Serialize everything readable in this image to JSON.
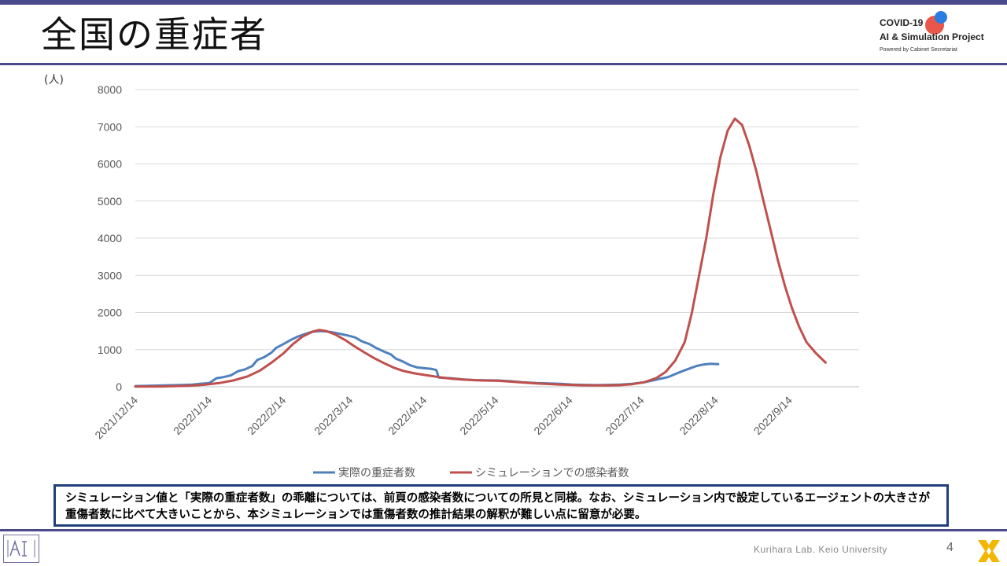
{
  "header": {
    "title": "全国の重症者",
    "logo": {
      "line1": "COVID-19",
      "line2": "AI & Simulation Project",
      "line3": "Powered by Cabinet Secretariat"
    }
  },
  "chart_data": {
    "type": "line",
    "ylabel": "(人)",
    "xlabel": "",
    "ylim": [
      0,
      8000
    ],
    "yticks": [
      0,
      1000,
      2000,
      3000,
      4000,
      5000,
      6000,
      7000,
      8000
    ],
    "xlim": [
      "2021-12-14",
      "2022-10-13"
    ],
    "xtick_dates": [
      "2021-12-14",
      "2022-01-14",
      "2022-02-14",
      "2022-03-14",
      "2022-04-14",
      "2022-05-14",
      "2022-06-14",
      "2022-07-14",
      "2022-08-14",
      "2022-09-14"
    ],
    "xtick_labels": [
      "2021/12/14",
      "2022/1/14",
      "2022/2/14",
      "2022/3/14",
      "2022/4/14",
      "2022/5/14",
      "2022/6/14",
      "2022/7/14",
      "2022/8/14",
      "2022/9/14"
    ],
    "grid": true,
    "legend_position": "bottom",
    "series": [
      {
        "name": "実際の重症者数",
        "color": "#4f81bd",
        "points": [
          [
            "2021-12-14",
            20
          ],
          [
            "2021-12-20",
            25
          ],
          [
            "2021-12-26",
            35
          ],
          [
            "2022-01-01",
            45
          ],
          [
            "2022-01-07",
            60
          ],
          [
            "2022-01-10",
            80
          ],
          [
            "2022-01-14",
            100
          ],
          [
            "2022-01-17",
            230
          ],
          [
            "2022-01-20",
            260
          ],
          [
            "2022-01-23",
            310
          ],
          [
            "2022-01-26",
            420
          ],
          [
            "2022-01-29",
            470
          ],
          [
            "2022-02-01",
            560
          ],
          [
            "2022-02-03",
            720
          ],
          [
            "2022-02-06",
            800
          ],
          [
            "2022-02-09",
            920
          ],
          [
            "2022-02-11",
            1050
          ],
          [
            "2022-02-14",
            1150
          ],
          [
            "2022-02-17",
            1260
          ],
          [
            "2022-02-20",
            1350
          ],
          [
            "2022-02-23",
            1420
          ],
          [
            "2022-02-26",
            1480
          ],
          [
            "2022-03-01",
            1500
          ],
          [
            "2022-03-04",
            1490
          ],
          [
            "2022-03-07",
            1460
          ],
          [
            "2022-03-10",
            1420
          ],
          [
            "2022-03-13",
            1380
          ],
          [
            "2022-03-16",
            1330
          ],
          [
            "2022-03-19",
            1220
          ],
          [
            "2022-03-22",
            1150
          ],
          [
            "2022-03-25",
            1040
          ],
          [
            "2022-03-28",
            950
          ],
          [
            "2022-03-31",
            870
          ],
          [
            "2022-04-02",
            760
          ],
          [
            "2022-04-05",
            680
          ],
          [
            "2022-04-08",
            580
          ],
          [
            "2022-04-11",
            520
          ],
          [
            "2022-04-14",
            500
          ],
          [
            "2022-04-17",
            480
          ],
          [
            "2022-04-19",
            450
          ],
          [
            "2022-04-20",
            250
          ],
          [
            "2022-04-25",
            230
          ],
          [
            "2022-04-30",
            200
          ],
          [
            "2022-05-05",
            180
          ],
          [
            "2022-05-10",
            175
          ],
          [
            "2022-05-15",
            170
          ],
          [
            "2022-05-20",
            150
          ],
          [
            "2022-05-25",
            120
          ],
          [
            "2022-05-31",
            100
          ],
          [
            "2022-06-05",
            90
          ],
          [
            "2022-06-10",
            80
          ],
          [
            "2022-06-15",
            60
          ],
          [
            "2022-06-20",
            50
          ],
          [
            "2022-06-25",
            45
          ],
          [
            "2022-06-30",
            50
          ],
          [
            "2022-07-05",
            60
          ],
          [
            "2022-07-10",
            80
          ],
          [
            "2022-07-15",
            120
          ],
          [
            "2022-07-20",
            190
          ],
          [
            "2022-07-25",
            260
          ],
          [
            "2022-07-28",
            340
          ],
          [
            "2022-07-31",
            420
          ],
          [
            "2022-08-03",
            490
          ],
          [
            "2022-08-06",
            560
          ],
          [
            "2022-08-09",
            600
          ],
          [
            "2022-08-12",
            620
          ],
          [
            "2022-08-15",
            610
          ]
        ]
      },
      {
        "name": "シミュレーションでの感染者数",
        "color": "#c0504d",
        "points": [
          [
            "2021-12-14",
            5
          ],
          [
            "2021-12-25",
            8
          ],
          [
            "2022-01-05",
            25
          ],
          [
            "2022-01-12",
            55
          ],
          [
            "2022-01-18",
            100
          ],
          [
            "2022-01-24",
            170
          ],
          [
            "2022-01-30",
            280
          ],
          [
            "2022-02-04",
            430
          ],
          [
            "2022-02-09",
            650
          ],
          [
            "2022-02-14",
            900
          ],
          [
            "2022-02-18",
            1150
          ],
          [
            "2022-02-22",
            1350
          ],
          [
            "2022-02-26",
            1480
          ],
          [
            "2022-03-01",
            1530
          ],
          [
            "2022-03-04",
            1500
          ],
          [
            "2022-03-08",
            1400
          ],
          [
            "2022-03-12",
            1250
          ],
          [
            "2022-03-16",
            1080
          ],
          [
            "2022-03-20",
            920
          ],
          [
            "2022-03-24",
            770
          ],
          [
            "2022-03-28",
            640
          ],
          [
            "2022-04-01",
            520
          ],
          [
            "2022-04-05",
            430
          ],
          [
            "2022-04-10",
            360
          ],
          [
            "2022-04-15",
            310
          ],
          [
            "2022-04-20",
            260
          ],
          [
            "2022-04-25",
            220
          ],
          [
            "2022-05-01",
            190
          ],
          [
            "2022-05-08",
            170
          ],
          [
            "2022-05-15",
            160
          ],
          [
            "2022-05-22",
            130
          ],
          [
            "2022-05-31",
            90
          ],
          [
            "2022-06-10",
            60
          ],
          [
            "2022-06-20",
            40
          ],
          [
            "2022-06-30",
            35
          ],
          [
            "2022-07-05",
            45
          ],
          [
            "2022-07-10",
            70
          ],
          [
            "2022-07-15",
            120
          ],
          [
            "2022-07-20",
            230
          ],
          [
            "2022-07-24",
            400
          ],
          [
            "2022-07-28",
            700
          ],
          [
            "2022-08-01",
            1200
          ],
          [
            "2022-08-04",
            2000
          ],
          [
            "2022-08-07",
            3000
          ],
          [
            "2022-08-10",
            4000
          ],
          [
            "2022-08-13",
            5200
          ],
          [
            "2022-08-16",
            6200
          ],
          [
            "2022-08-19",
            6900
          ],
          [
            "2022-08-22",
            7220
          ],
          [
            "2022-08-25",
            7050
          ],
          [
            "2022-08-28",
            6500
          ],
          [
            "2022-08-31",
            5800
          ],
          [
            "2022-09-03",
            5000
          ],
          [
            "2022-09-06",
            4200
          ],
          [
            "2022-09-09",
            3400
          ],
          [
            "2022-09-12",
            2700
          ],
          [
            "2022-09-15",
            2100
          ],
          [
            "2022-09-18",
            1600
          ],
          [
            "2022-09-21",
            1200
          ],
          [
            "2022-09-25",
            900
          ],
          [
            "2022-09-29",
            650
          ]
        ]
      }
    ]
  },
  "note": {
    "text": "シミュレーション値と「実際の重症者数」の乖離については、前頁の感染者数についての所見と同様。なお、シミュレーション内で設定しているエージェントの大きさが重傷者数に比べて大きいことから、本シミュレーションでは重傷者数の推計結果の解釈が難しい点に留意が必要。"
  },
  "footer": {
    "credit": "Kurihara Lab. Keio University",
    "page_number": "4"
  },
  "colors": {
    "accent_bar": "#4a4a8a",
    "note_border": "#1f3f7a",
    "logo_red": "#e8574a",
    "logo_blue": "#2a7de1",
    "footer_mark": "#f2b705"
  }
}
